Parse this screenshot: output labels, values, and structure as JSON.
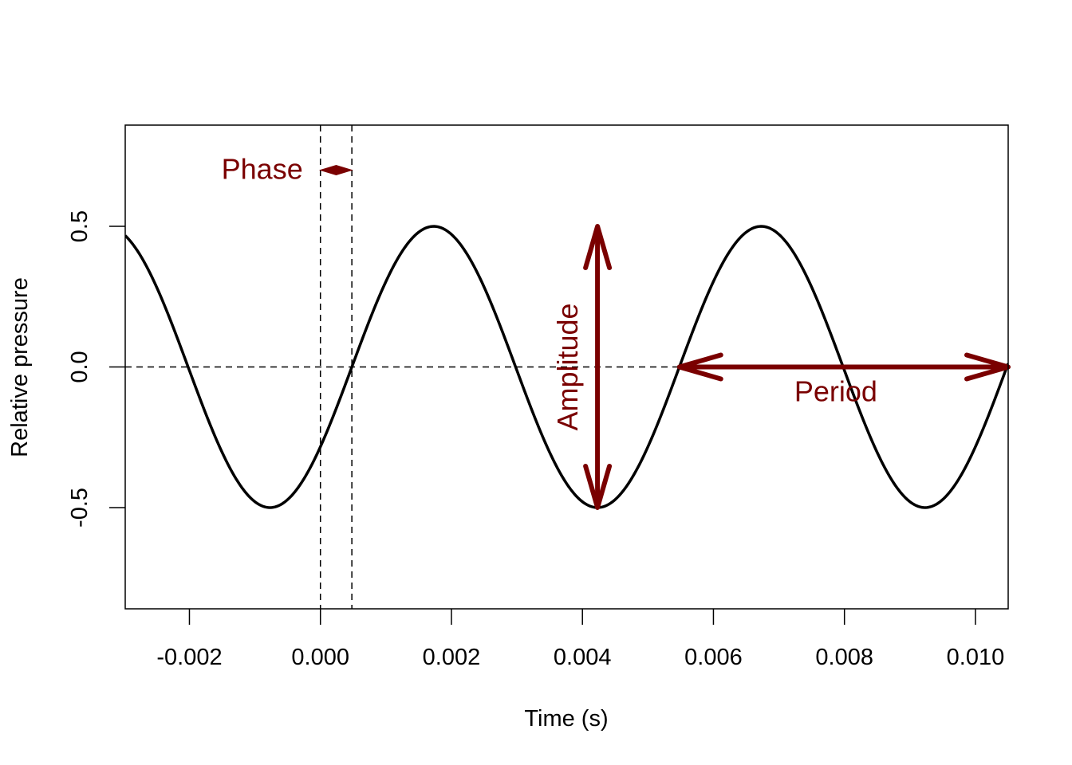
{
  "chart_data": {
    "type": "line",
    "xlabel": "Time (s)",
    "ylabel": "Relative pressure",
    "xlim": [
      -0.00298,
      0.0105
    ],
    "ylim": [
      -0.86,
      0.86
    ],
    "x_ticks": [
      -0.002,
      0.0,
      0.002,
      0.004,
      0.006,
      0.008,
      0.01
    ],
    "x_tick_labels": [
      "-0.002",
      "0.000",
      "0.002",
      "0.004",
      "0.006",
      "0.008",
      "0.010"
    ],
    "y_ticks": [
      -0.5,
      0.0,
      0.5
    ],
    "y_tick_labels": [
      "-0.5",
      "0.0",
      "0.5"
    ],
    "series": [
      {
        "function": "sine",
        "amplitude": 0.5,
        "period": 0.005,
        "zero_crossing_rising": 0.00048,
        "x_range": [
          -0.00298,
          0.0105
        ],
        "color": "#000000"
      }
    ],
    "reference_lines": {
      "horizontal_y": 0.0,
      "vertical_x": [
        0.0,
        0.00048
      ]
    },
    "annotations": {
      "phase": {
        "text": "Phase",
        "x_from": 0.0,
        "x_to": 0.00048,
        "y": 0.7
      },
      "amplitude": {
        "text": "Amplitude",
        "x": 0.00423,
        "y_from": 0.5,
        "y_to": -0.5
      },
      "period": {
        "text": "Period",
        "x_from": 0.00548,
        "x_to": 0.0105,
        "y": 0.0
      }
    },
    "annotation_color": "#7a0000",
    "grid": false,
    "legend": "none"
  }
}
